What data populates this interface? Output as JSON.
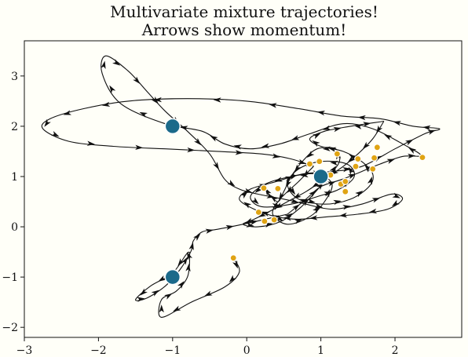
{
  "chart_data": {
    "type": "scatter",
    "title_lines": [
      "Multivariate mixture trajectories!",
      "Arrows show momentum!"
    ],
    "xlim": [
      -3,
      2.9
    ],
    "ylim": [
      -2.2,
      3.7
    ],
    "xticks": [
      -3,
      -2,
      -1,
      0,
      1,
      2
    ],
    "yticks": [
      -2,
      -1,
      0,
      1,
      2,
      3
    ],
    "xtick_labels": [
      "−3",
      "−2",
      "−1",
      "0",
      "1",
      "2"
    ],
    "ytick_labels": [
      "−2",
      "−1",
      "0",
      "1",
      "2",
      "3"
    ],
    "grid": false,
    "colors": {
      "centers": "#1b6a8a",
      "samples": "#e0a413",
      "trajectory": "#111111",
      "background": "#fffff8"
    },
    "centers": [
      {
        "x": -1.0,
        "y": 2.0
      },
      {
        "x": 1.0,
        "y": 1.0
      },
      {
        "x": -1.0,
        "y": -1.0
      }
    ],
    "samples": [
      {
        "x": -0.18,
        "y": -0.62
      },
      {
        "x": 0.23,
        "y": 0.77
      },
      {
        "x": 0.42,
        "y": 0.76
      },
      {
        "x": 0.16,
        "y": 0.29
      },
      {
        "x": 0.24,
        "y": 0.11
      },
      {
        "x": 0.37,
        "y": 0.14
      },
      {
        "x": 0.85,
        "y": 1.25
      },
      {
        "x": 0.98,
        "y": 1.3
      },
      {
        "x": 1.13,
        "y": 1.03
      },
      {
        "x": 1.22,
        "y": 1.45
      },
      {
        "x": 1.27,
        "y": 0.85
      },
      {
        "x": 1.33,
        "y": 0.9
      },
      {
        "x": 1.33,
        "y": 0.7
      },
      {
        "x": 1.47,
        "y": 1.2
      },
      {
        "x": 1.5,
        "y": 1.35
      },
      {
        "x": 1.7,
        "y": 1.15
      },
      {
        "x": 1.72,
        "y": 1.37
      },
      {
        "x": 1.76,
        "y": 1.58
      },
      {
        "x": 2.37,
        "y": 1.38
      }
    ],
    "trajectories": [
      [
        [
          -0.18,
          -0.62
        ],
        [
          -0.1,
          -0.9
        ],
        [
          -0.3,
          -1.2
        ],
        [
          -0.75,
          -1.5
        ],
        [
          -1.15,
          -1.8
        ],
        [
          -1.15,
          -1.45
        ],
        [
          -0.95,
          -1.28
        ],
        [
          -0.8,
          -1.0
        ],
        [
          -0.77,
          -0.62
        ],
        [
          -0.8,
          -0.52
        ],
        [
          -1.0,
          -0.92
        ],
        [
          -1.3,
          -1.18
        ],
        [
          -1.5,
          -1.45
        ],
        [
          -1.35,
          -1.42
        ],
        [
          -1.1,
          -1.18
        ],
        [
          -0.9,
          -0.85
        ],
        [
          -0.75,
          -0.48
        ],
        [
          -0.72,
          -0.28
        ],
        [
          -0.6,
          -0.1
        ],
        [
          -0.4,
          -0.05
        ],
        [
          -0.05,
          0.05
        ],
        [
          0.25,
          0.15
        ],
        [
          0.55,
          0.25
        ]
      ],
      [
        [
          0.55,
          0.25
        ],
        [
          0.8,
          0.55
        ],
        [
          1.0,
          0.8
        ],
        [
          1.3,
          0.95
        ],
        [
          1.55,
          1.1
        ],
        [
          1.8,
          1.25
        ],
        [
          2.1,
          1.4
        ],
        [
          2.35,
          1.42
        ],
        [
          2.1,
          1.65
        ],
        [
          1.7,
          1.95
        ],
        [
          1.3,
          2.05
        ],
        [
          0.85,
          1.85
        ],
        [
          0.45,
          1.65
        ],
        [
          0.05,
          1.55
        ],
        [
          -0.3,
          1.65
        ],
        [
          -0.6,
          1.9
        ],
        [
          -1.1,
          2.05
        ],
        [
          -1.7,
          2.45
        ],
        [
          -1.95,
          3.05
        ],
        [
          -1.9,
          3.4
        ],
        [
          -1.6,
          3.1
        ],
        [
          -1.35,
          2.7
        ],
        [
          -1.1,
          2.3
        ],
        [
          -0.8,
          1.9
        ],
        [
          -0.5,
          1.45
        ],
        [
          -0.3,
          0.95
        ],
        [
          -0.1,
          0.75
        ],
        [
          0.15,
          0.65
        ],
        [
          0.5,
          0.55
        ],
        [
          0.8,
          0.45
        ]
      ],
      [
        [
          0.8,
          0.45
        ],
        [
          1.15,
          0.35
        ],
        [
          1.55,
          0.45
        ],
        [
          1.95,
          0.65
        ],
        [
          2.1,
          0.55
        ],
        [
          1.9,
          0.35
        ],
        [
          1.5,
          0.25
        ],
        [
          1.1,
          0.2
        ],
        [
          0.7,
          0.15
        ],
        [
          0.4,
          0.2
        ],
        [
          0.1,
          0.35
        ],
        [
          -0.1,
          0.55
        ],
        [
          0.05,
          0.75
        ],
        [
          0.4,
          0.9
        ],
        [
          0.75,
          1.05
        ],
        [
          1.15,
          1.1
        ],
        [
          1.55,
          1.2
        ],
        [
          2.0,
          1.55
        ],
        [
          2.4,
          1.85
        ],
        [
          2.6,
          1.95
        ],
        [
          2.25,
          2.0
        ],
        [
          1.8,
          2.15
        ],
        [
          1.3,
          2.2
        ],
        [
          0.7,
          2.35
        ],
        [
          0.0,
          2.5
        ],
        [
          -0.8,
          2.55
        ],
        [
          -1.6,
          2.5
        ],
        [
          -2.2,
          2.35
        ],
        [
          -2.65,
          2.15
        ],
        [
          -2.75,
          1.95
        ],
        [
          -2.4,
          1.7
        ],
        [
          -1.8,
          1.6
        ],
        [
          -1.1,
          1.55
        ],
        [
          -0.4,
          1.5
        ],
        [
          0.2,
          1.45
        ],
        [
          0.6,
          1.35
        ],
        [
          0.9,
          1.2
        ]
      ],
      [
        [
          0.9,
          1.2
        ],
        [
          0.7,
          0.9
        ],
        [
          0.45,
          0.55
        ],
        [
          0.35,
          0.25
        ],
        [
          0.55,
          0.05
        ],
        [
          0.85,
          0.2
        ],
        [
          1.05,
          0.5
        ],
        [
          1.15,
          0.85
        ],
        [
          0.95,
          1.05
        ],
        [
          0.6,
          1.0
        ],
        [
          0.25,
          0.85
        ],
        [
          0.05,
          0.6
        ],
        [
          0.2,
          0.4
        ],
        [
          0.6,
          0.45
        ],
        [
          0.95,
          0.6
        ],
        [
          1.25,
          0.75
        ],
        [
          1.45,
          1.0
        ],
        [
          1.35,
          1.25
        ],
        [
          1.0,
          1.3
        ],
        [
          0.7,
          1.15
        ],
        [
          0.55,
          0.85
        ],
        [
          0.7,
          0.55
        ],
        [
          1.05,
          0.45
        ],
        [
          1.4,
          0.55
        ],
        [
          1.65,
          0.8
        ],
        [
          1.7,
          1.05
        ],
        [
          1.55,
          1.3
        ],
        [
          1.3,
          1.5
        ],
        [
          1.0,
          1.6
        ],
        [
          0.85,
          1.75
        ],
        [
          1.05,
          1.9
        ],
        [
          1.4,
          2.0
        ],
        [
          1.85,
          2.1
        ]
      ],
      [
        [
          1.85,
          2.1
        ],
        [
          1.7,
          1.75
        ],
        [
          1.5,
          1.45
        ],
        [
          1.3,
          1.2
        ],
        [
          1.05,
          0.95
        ],
        [
          0.8,
          0.7
        ],
        [
          0.55,
          0.5
        ],
        [
          0.3,
          0.3
        ],
        [
          0.1,
          0.15
        ],
        [
          -0.05,
          0.05
        ],
        [
          0.15,
          0.0
        ],
        [
          0.45,
          0.1
        ],
        [
          0.7,
          0.35
        ],
        [
          0.9,
          0.65
        ],
        [
          1.1,
          1.0
        ],
        [
          1.25,
          1.3
        ],
        [
          1.2,
          1.55
        ],
        [
          0.95,
          1.55
        ],
        [
          0.75,
          1.3
        ],
        [
          0.6,
          1.0
        ],
        [
          0.5,
          0.7
        ],
        [
          0.42,
          0.5
        ],
        [
          0.3,
          0.65
        ],
        [
          0.25,
          0.77
        ]
      ]
    ]
  }
}
